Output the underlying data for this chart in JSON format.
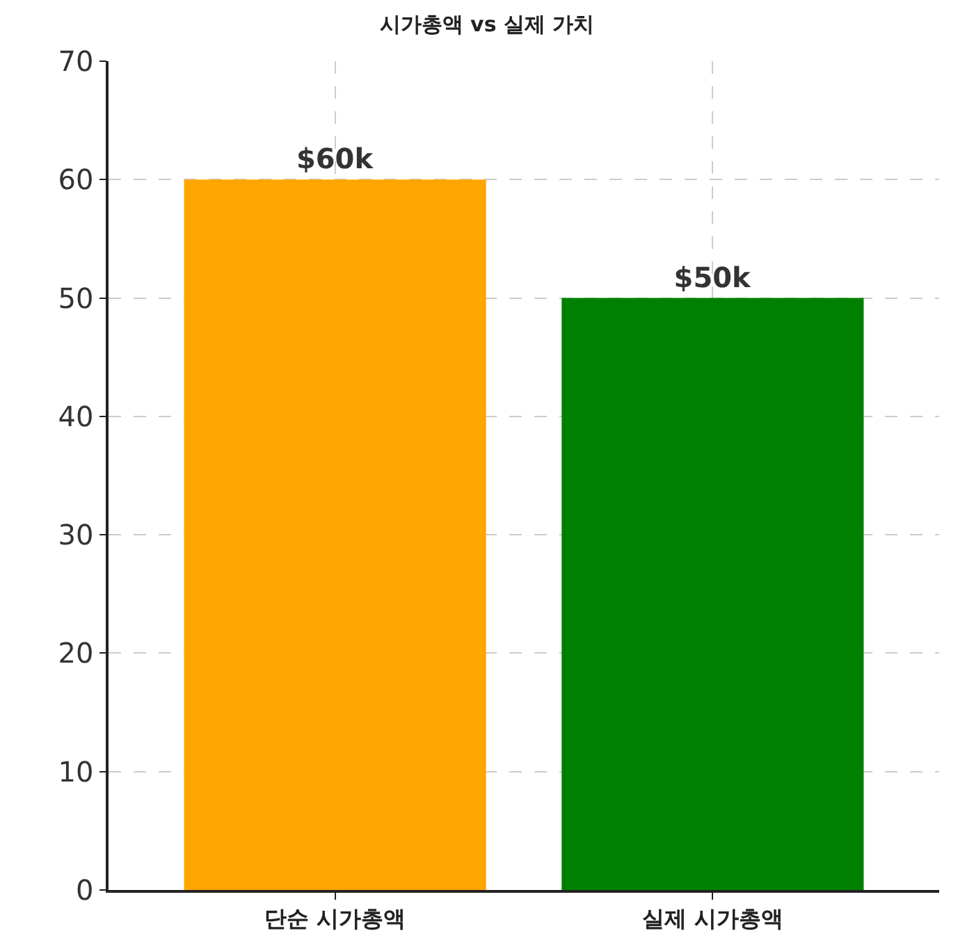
{
  "chart_data": {
    "type": "bar",
    "title": "시가총액 vs 실제 가치",
    "categories": [
      "단순 시가총액",
      "실제 시가총액"
    ],
    "values": [
      60,
      50
    ],
    "colors": [
      "#ffa500",
      "#008000"
    ],
    "value_labels": [
      "$60k",
      "$50k"
    ],
    "ylim": [
      0,
      70
    ],
    "yticks": [
      0,
      10,
      20,
      30,
      40,
      50,
      60,
      70
    ],
    "grid": true
  }
}
